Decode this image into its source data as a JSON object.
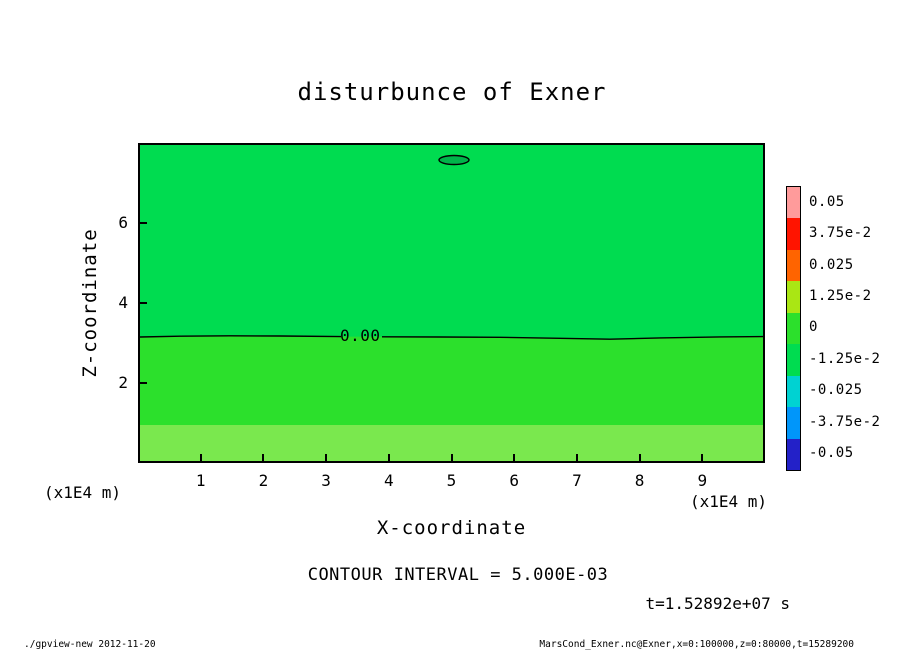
{
  "title": "disturbunce of Exner",
  "axes": {
    "x_label": "X-coordinate",
    "z_label": "Z-coordinate",
    "x_unit_left": "(x1E4 m)",
    "x_unit_right": "(x1E4 m)",
    "x_ticks": [
      1,
      2,
      3,
      4,
      5,
      6,
      7,
      8,
      9
    ],
    "z_ticks": [
      2,
      4,
      6
    ],
    "x_range": [
      0,
      10
    ],
    "z_range": [
      0,
      8
    ]
  },
  "contour": {
    "zero_label": "0.00",
    "interval_text": "CONTOUR INTERVAL = 5.000E-03"
  },
  "time_label": "t=1.52892e+07 s",
  "footer": {
    "left": "./gpview-new  2012-11-20",
    "right": "MarsCond_Exner.nc@Exner,x=0:100000,z=0:80000,t=15289200"
  },
  "colorbar": {
    "labels": [
      "0.05",
      "3.75e-2",
      "0.025",
      "1.25e-2",
      "0",
      "-1.25e-2",
      "-0.025",
      "-3.75e-2",
      "-0.05"
    ],
    "colors": [
      "#FF9B9B",
      "#FF1400",
      "#FF6400",
      "#AAE614",
      "#2CE02C",
      "#00DC50",
      "#00D2D2",
      "#0096FA",
      "#2321C8"
    ]
  },
  "plot": {
    "region_colors": {
      "upper": "#00DC50",
      "lower": "#2CE02C",
      "surface_band": "#7AE84E"
    },
    "closed_contour_fill": "#00B44A",
    "frame_color": "#000000"
  },
  "chart_data": {
    "type": "heatmap",
    "title": "disturbunce of Exner",
    "xlabel": "X-coordinate (x1E4 m)",
    "ylabel": "Z-coordinate (x1E4 m)",
    "xlim": [
      0,
      10
    ],
    "ylim": [
      0,
      8
    ],
    "colorbar_ticks": [
      0.05,
      0.0375,
      0.025,
      0.0125,
      0,
      -0.0125,
      -0.025,
      -0.0375,
      -0.05
    ],
    "contour_interval": 0.005,
    "contours": [
      {
        "level": 0,
        "label": "0.00",
        "shape": "nearly horizontal line at z ≈ 3.2 (x1E4 m) across full x range, slight dip near x ≈ 7.5"
      },
      {
        "level": 0,
        "label": null,
        "shape": "small closed contour near x ≈ 5.0, z ≈ 7.6"
      }
    ],
    "tone_regions": [
      {
        "z_range": [
          3.2,
          8
        ],
        "value_bin": [
          -0.0125,
          0
        ],
        "color": "#00DC50"
      },
      {
        "z_range": [
          1.0,
          3.2
        ],
        "value_bin": [
          0,
          0.0125
        ],
        "color": "#2CE02C"
      },
      {
        "z_range": [
          0,
          1.0
        ],
        "value_bin": [
          0.0125,
          0.025
        ],
        "color": "#7AE84E"
      }
    ],
    "legend_position": "right colorbar",
    "annotations": [
      "CONTOUR INTERVAL = 5.000E-03",
      "t=1.52892e+07 s"
    ]
  }
}
